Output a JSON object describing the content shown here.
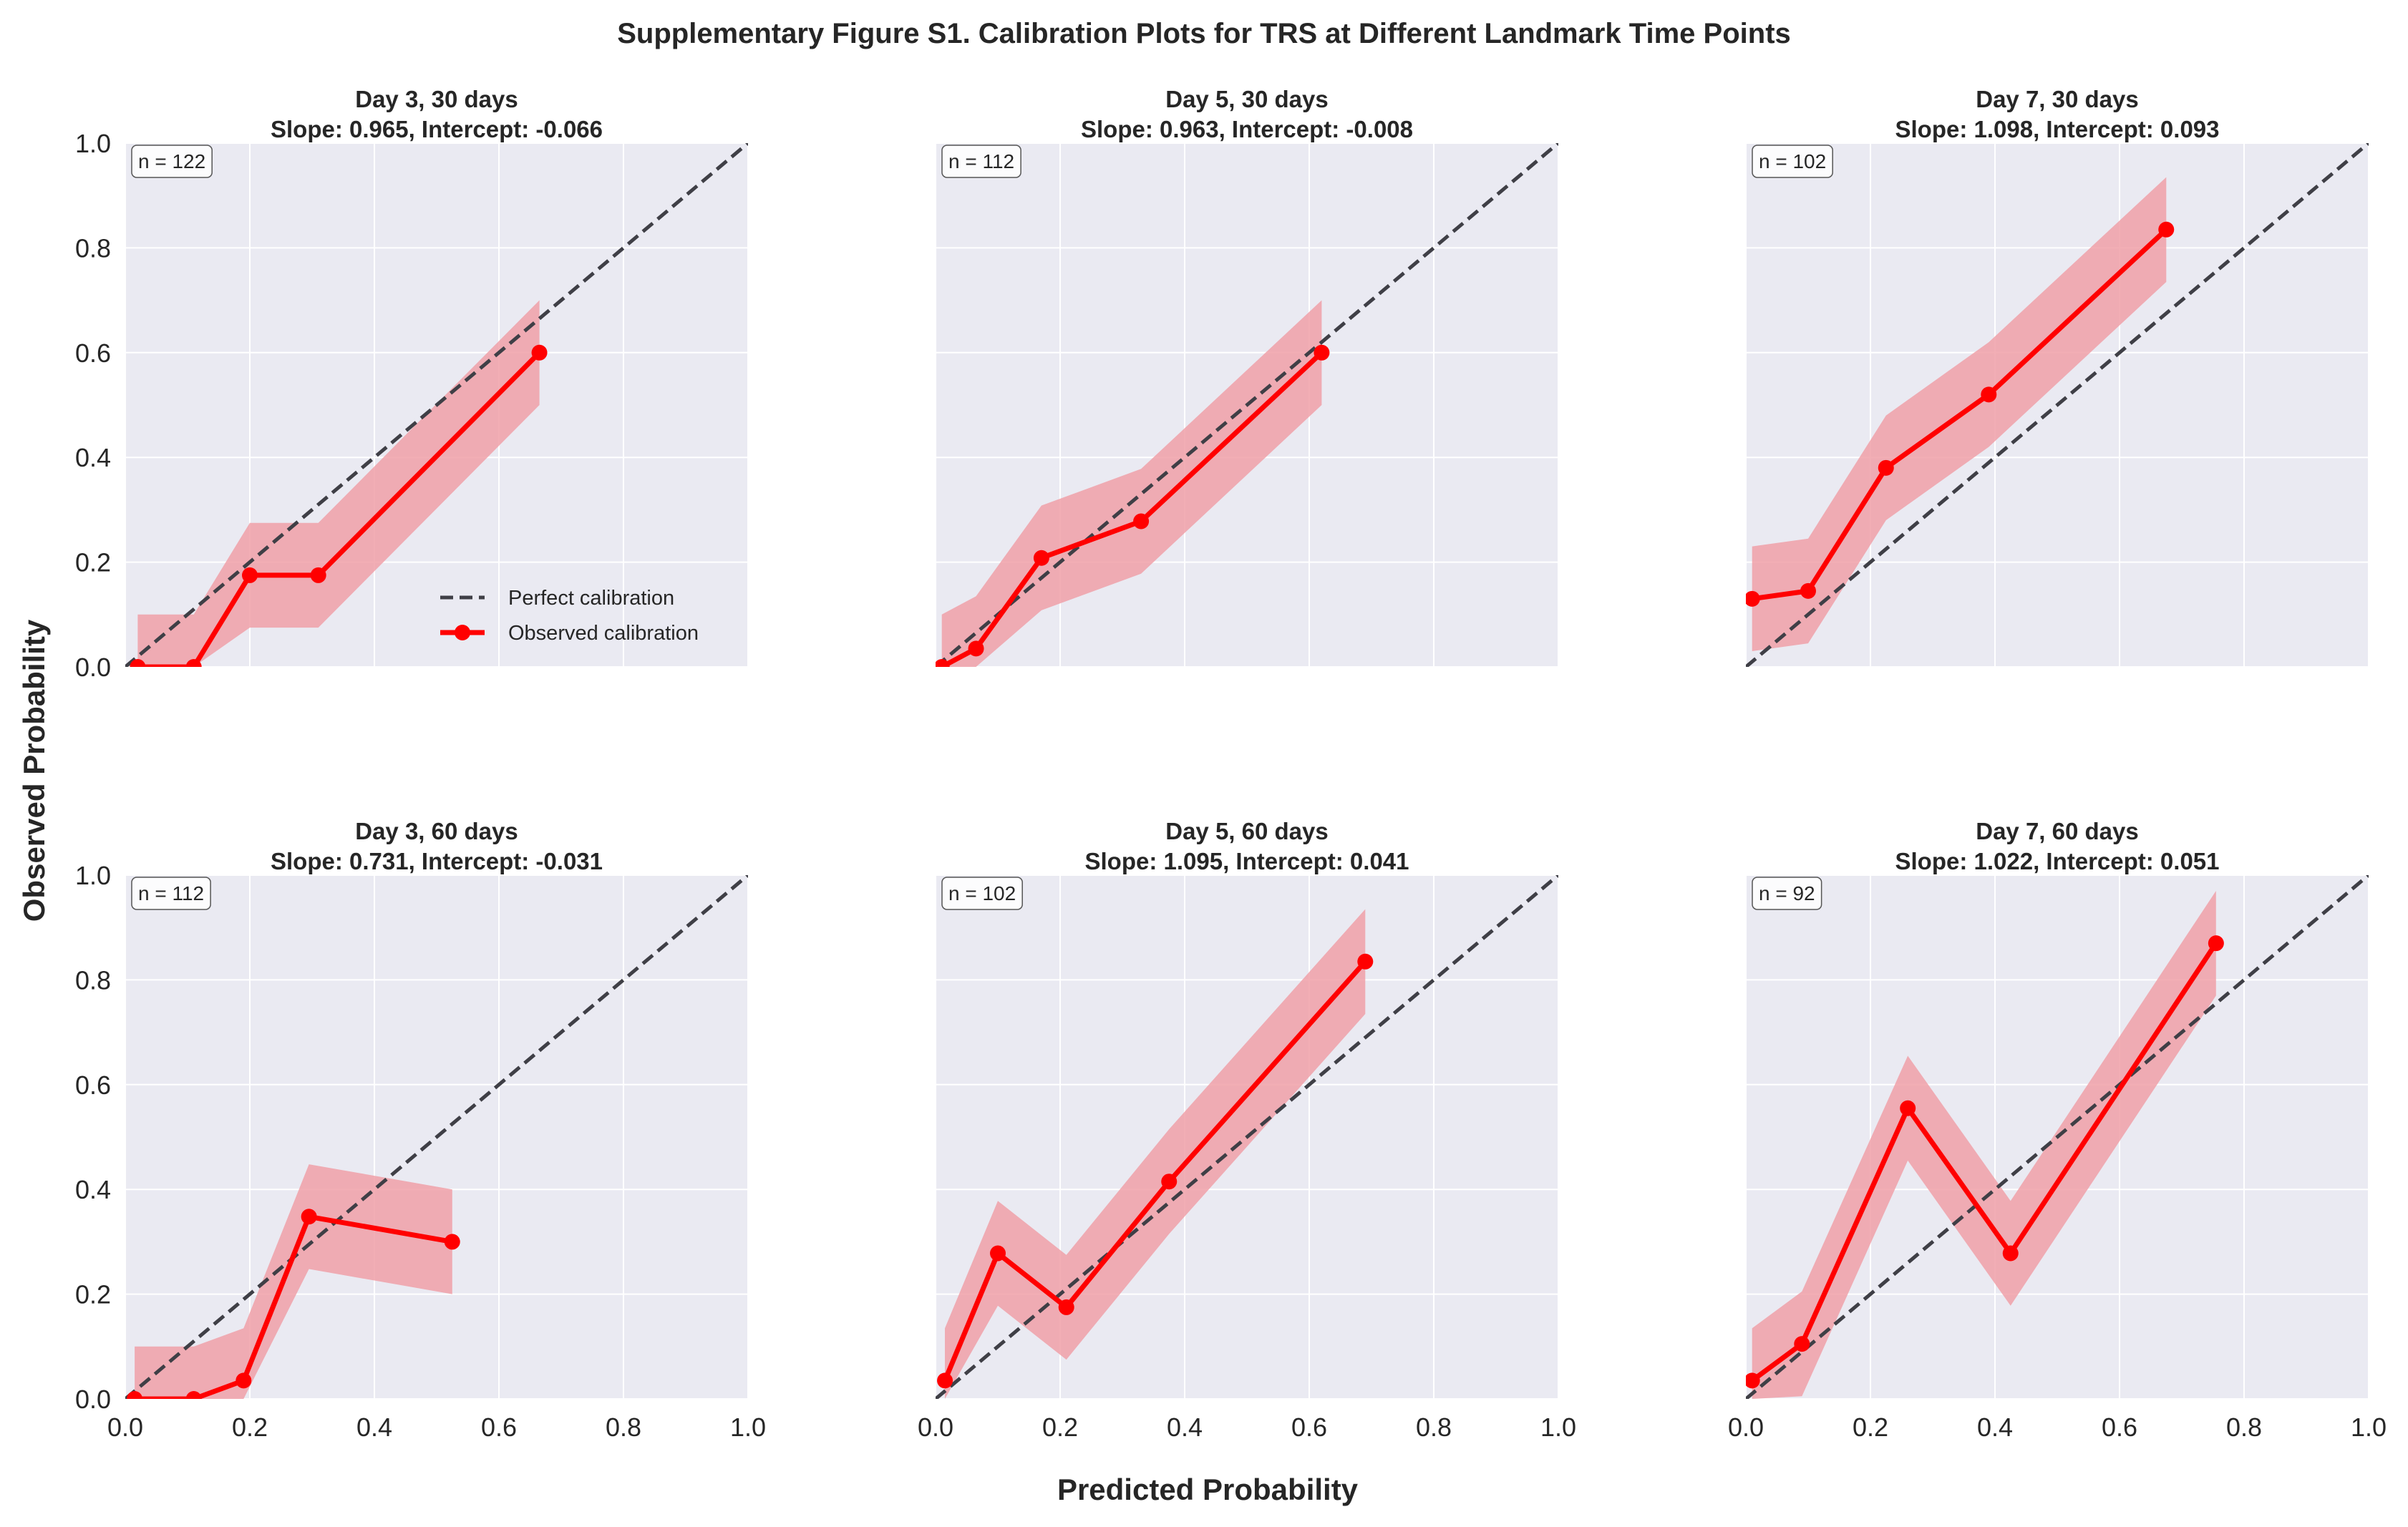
{
  "figure": {
    "title": "Supplementary Figure S1. Calibration Plots for TRS at Different Landmark Time Points",
    "xlabel": "Predicted Probability",
    "ylabel": "Observed Probability"
  },
  "colors": {
    "panel_bg": "#eaeaf2",
    "grid": "#ffffff",
    "observed_line": "#ff0000",
    "ci_fill": "#f0a0a8",
    "perfect_line": "#3f3f46"
  },
  "legend": {
    "placement": "lower-right",
    "panel": 0,
    "items": [
      "Perfect calibration",
      "Observed calibration"
    ]
  },
  "chart_data": [
    {
      "type": "line",
      "title_line1": "Day 3, 30 days",
      "title_line2": "Slope: 0.965, Intercept: -0.066",
      "n_label": "n = 122",
      "xlim": [
        0,
        1
      ],
      "ylim": [
        0,
        1
      ],
      "xticks": [
        "0.0",
        "0.2",
        "0.4",
        "0.6",
        "0.8",
        "1.0"
      ],
      "yticks": [
        "0.0",
        "0.2",
        "0.4",
        "0.6",
        "0.8",
        "1.0"
      ],
      "show_xticks": false,
      "show_yticks": true,
      "x": [
        0.02,
        0.11,
        0.2,
        0.31,
        0.665
      ],
      "y": [
        0.0,
        0.0,
        0.175,
        0.175,
        0.6
      ],
      "lower": [
        0.0,
        0.0,
        0.075,
        0.075,
        0.5
      ],
      "upper": [
        0.1,
        0.1,
        0.275,
        0.275,
        0.7
      ]
    },
    {
      "type": "line",
      "title_line1": "Day 5, 30 days",
      "title_line2": "Slope: 0.963, Intercept: -0.008",
      "n_label": "n = 112",
      "xlim": [
        0,
        1
      ],
      "ylim": [
        0,
        1
      ],
      "xticks": [
        "0.0",
        "0.2",
        "0.4",
        "0.6",
        "0.8",
        "1.0"
      ],
      "yticks": [
        "0.0",
        "0.2",
        "0.4",
        "0.6",
        "0.8",
        "1.0"
      ],
      "show_xticks": false,
      "show_yticks": false,
      "x": [
        0.01,
        0.065,
        0.17,
        0.33,
        0.62
      ],
      "y": [
        0.0,
        0.035,
        0.208,
        0.278,
        0.6
      ],
      "lower": [
        0.0,
        0.0,
        0.108,
        0.178,
        0.5
      ],
      "upper": [
        0.1,
        0.135,
        0.308,
        0.378,
        0.7
      ]
    },
    {
      "type": "line",
      "title_line1": "Day 7, 30 days",
      "title_line2": "Slope: 1.098, Intercept: 0.093",
      "n_label": "n = 102",
      "xlim": [
        0,
        1
      ],
      "ylim": [
        0,
        1
      ],
      "xticks": [
        "0.0",
        "0.2",
        "0.4",
        "0.6",
        "0.8",
        "1.0"
      ],
      "yticks": [
        "0.0",
        "0.2",
        "0.4",
        "0.6",
        "0.8",
        "1.0"
      ],
      "show_xticks": false,
      "show_yticks": false,
      "x": [
        0.01,
        0.1,
        0.225,
        0.39,
        0.675
      ],
      "y": [
        0.13,
        0.145,
        0.38,
        0.52,
        0.835
      ],
      "lower": [
        0.03,
        0.045,
        0.28,
        0.42,
        0.735
      ],
      "upper": [
        0.23,
        0.245,
        0.48,
        0.62,
        0.935
      ]
    },
    {
      "type": "line",
      "title_line1": "Day 3, 60 days",
      "title_line2": "Slope: 0.731, Intercept: -0.031",
      "n_label": "n = 112",
      "xlim": [
        0,
        1
      ],
      "ylim": [
        0,
        1
      ],
      "xticks": [
        "0.0",
        "0.2",
        "0.4",
        "0.6",
        "0.8",
        "1.0"
      ],
      "yticks": [
        "0.0",
        "0.2",
        "0.4",
        "0.6",
        "0.8",
        "1.0"
      ],
      "show_xticks": true,
      "show_yticks": true,
      "x": [
        0.015,
        0.11,
        0.19,
        0.295,
        0.525
      ],
      "y": [
        0.0,
        0.0,
        0.035,
        0.348,
        0.3
      ],
      "lower": [
        0.0,
        0.0,
        0.0,
        0.248,
        0.2
      ],
      "upper": [
        0.1,
        0.1,
        0.135,
        0.448,
        0.4
      ]
    },
    {
      "type": "line",
      "title_line1": "Day 5, 60 days",
      "title_line2": "Slope: 1.095, Intercept: 0.041",
      "n_label": "n = 102",
      "xlim": [
        0,
        1
      ],
      "ylim": [
        0,
        1
      ],
      "xticks": [
        "0.0",
        "0.2",
        "0.4",
        "0.6",
        "0.8",
        "1.0"
      ],
      "yticks": [
        "0.0",
        "0.2",
        "0.4",
        "0.6",
        "0.8",
        "1.0"
      ],
      "show_xticks": true,
      "show_yticks": false,
      "x": [
        0.015,
        0.1,
        0.21,
        0.375,
        0.69
      ],
      "y": [
        0.035,
        0.278,
        0.175,
        0.415,
        0.835
      ],
      "lower": [
        0.0,
        0.178,
        0.075,
        0.315,
        0.735
      ],
      "upper": [
        0.135,
        0.378,
        0.275,
        0.515,
        0.935
      ]
    },
    {
      "type": "line",
      "title_line1": "Day 7, 60 days",
      "title_line2": "Slope: 1.022, Intercept: 0.051",
      "n_label": "n = 92",
      "xlim": [
        0,
        1
      ],
      "ylim": [
        0,
        1
      ],
      "xticks": [
        "0.0",
        "0.2",
        "0.4",
        "0.6",
        "0.8",
        "1.0"
      ],
      "yticks": [
        "0.0",
        "0.2",
        "0.4",
        "0.6",
        "0.8",
        "1.0"
      ],
      "show_xticks": true,
      "show_yticks": false,
      "x": [
        0.01,
        0.09,
        0.26,
        0.425,
        0.755
      ],
      "y": [
        0.035,
        0.105,
        0.555,
        0.278,
        0.87
      ],
      "lower": [
        0.0,
        0.005,
        0.455,
        0.178,
        0.77
      ],
      "upper": [
        0.135,
        0.205,
        0.655,
        0.378,
        0.97
      ]
    }
  ]
}
